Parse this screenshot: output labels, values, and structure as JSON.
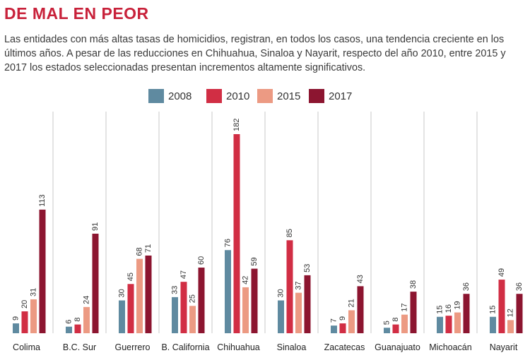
{
  "header": {
    "title": "DE MAL EN PEOR",
    "subtitle": "Las entidades con más altas tasas de homicidios, registran, en todos los casos, una tendencia creciente en los últimos años. A pesar de las reducciones en Chihuahua, Sinaloa y Nayarit, respecto del año 2010, entre 2015 y 2017 los estados seleccionadas presentan incrementos altamente significativos."
  },
  "colors": {
    "2008": "#5f8aa0",
    "2010": "#d12e44",
    "2015": "#ec9a83",
    "2017": "#8c1530",
    "gridline": "#c9c9c9"
  },
  "chart_data": {
    "type": "bar",
    "title": "DE MAL EN PEOR",
    "legend_position": "top-center",
    "grid": "vertical separators between categories",
    "categories": [
      "Colima",
      "B.C. Sur",
      "Guerrero",
      "B. California",
      "Chihuahua",
      "Sinaloa",
      "Zacatecas",
      "Guanajuato",
      "Michoacán",
      "Nayarit"
    ],
    "series": [
      {
        "name": "2008",
        "values": [
          9,
          6,
          30,
          33,
          76,
          30,
          7,
          5,
          15,
          15
        ]
      },
      {
        "name": "2010",
        "values": [
          20,
          8,
          45,
          47,
          182,
          85,
          9,
          8,
          16,
          49
        ]
      },
      {
        "name": "2015",
        "values": [
          31,
          24,
          68,
          25,
          42,
          37,
          21,
          17,
          19,
          12
        ]
      },
      {
        "name": "2017",
        "values": [
          113,
          91,
          71,
          60,
          59,
          53,
          43,
          38,
          36,
          36
        ]
      }
    ],
    "ylim": [
      0,
      182
    ]
  }
}
